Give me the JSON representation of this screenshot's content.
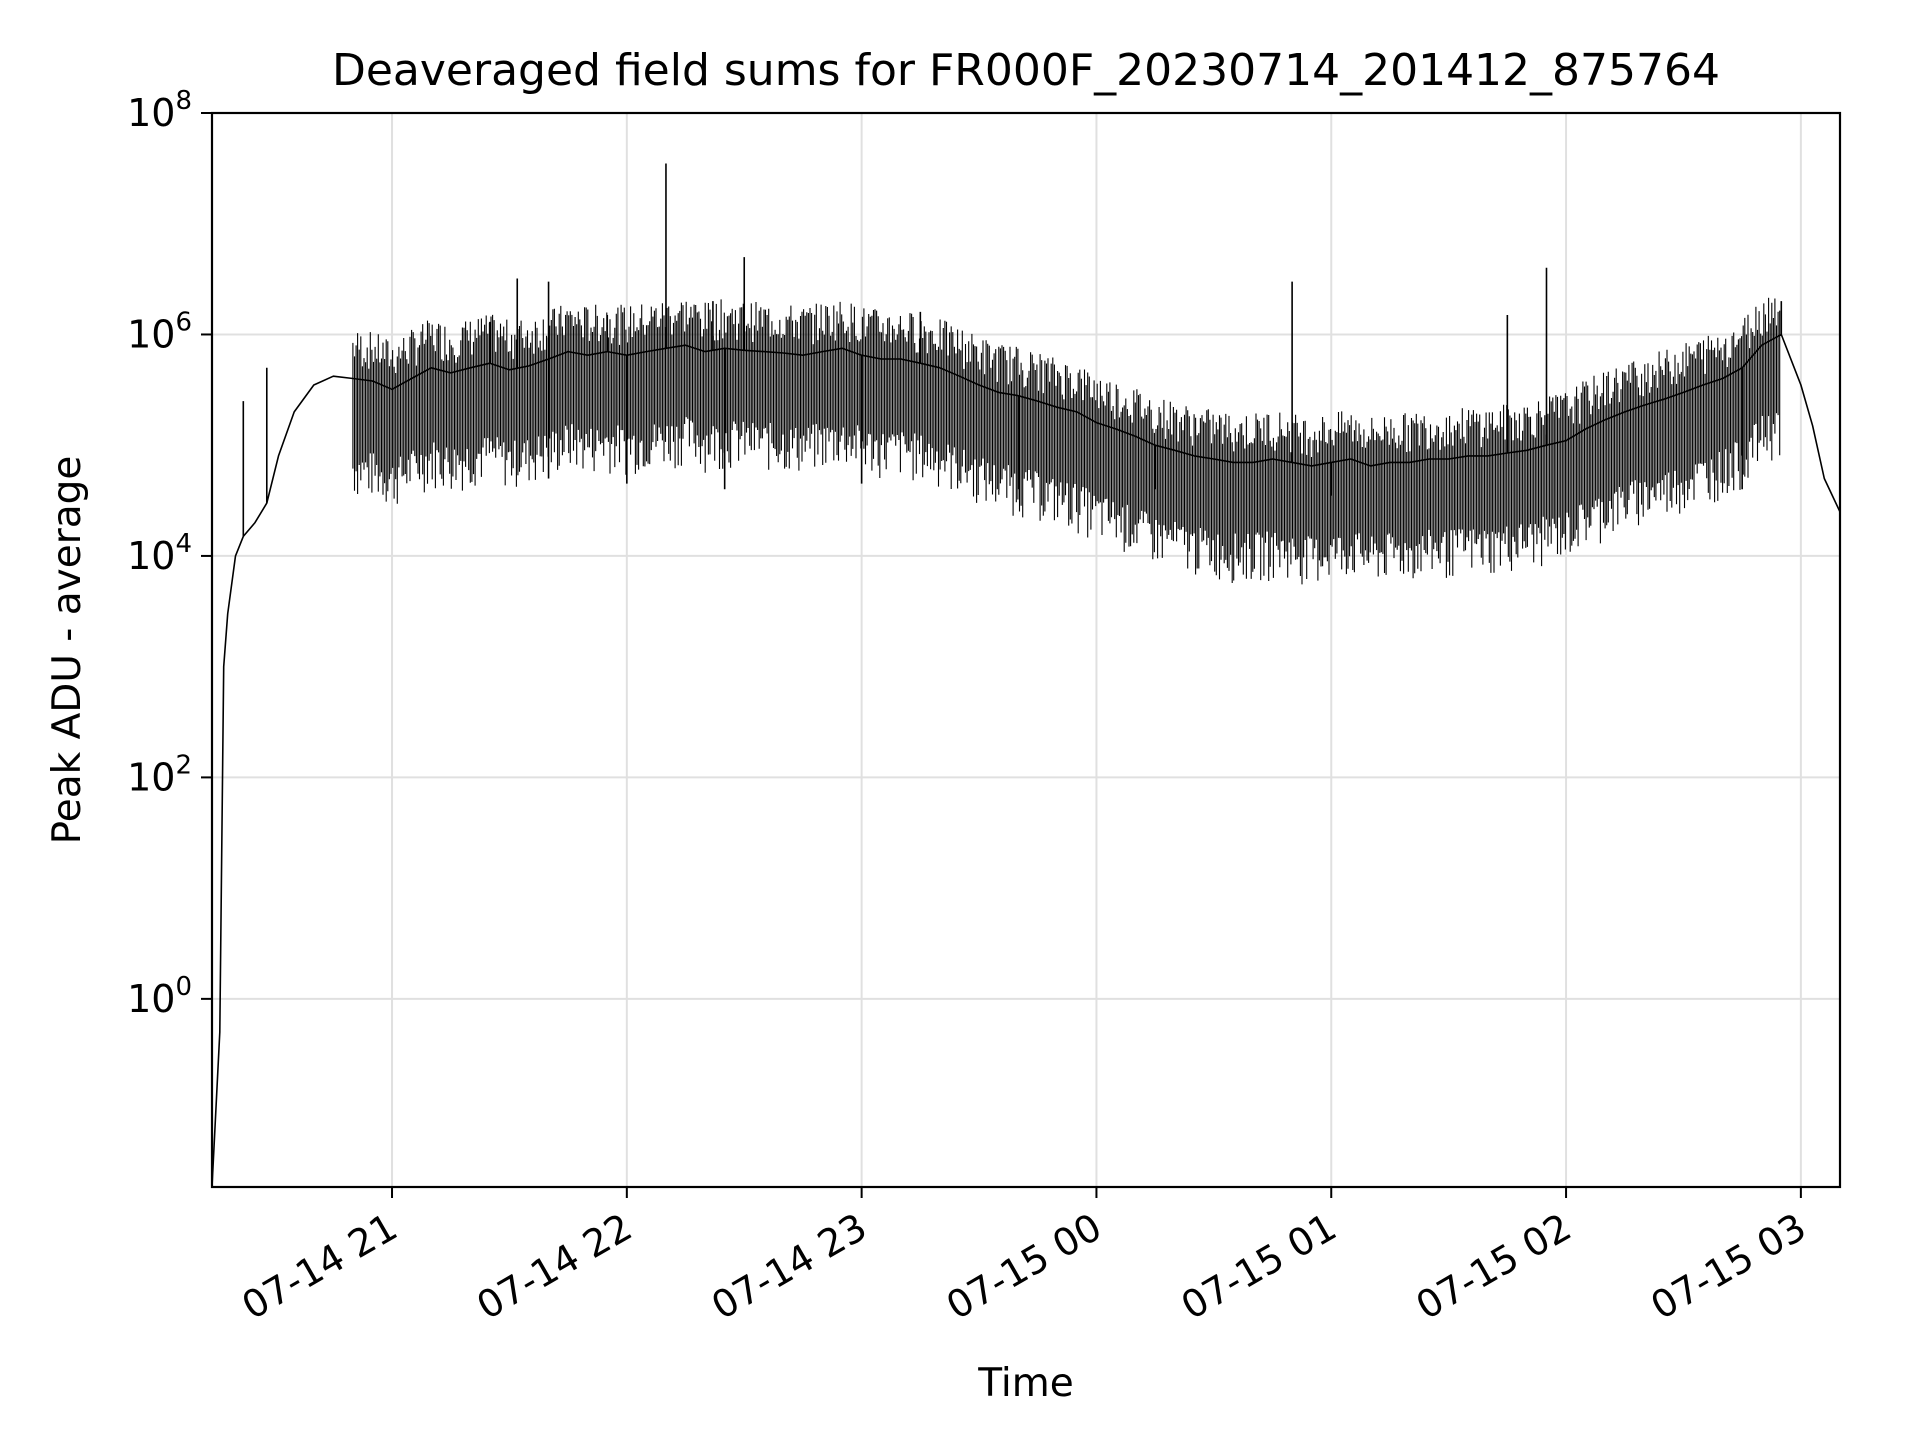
{
  "chart_data": {
    "type": "line",
    "title": "Deaveraged field sums for FR000F_20230714_201412_875764",
    "xlabel": "Time",
    "ylabel": "Peak ADU - average",
    "x_tick_labels": [
      "07-14 21",
      "07-14 22",
      "07-14 23",
      "07-15 00",
      "07-15 01",
      "07-15 02",
      "07-15 03"
    ],
    "y_scale": "log",
    "y_tick_labels": [
      {
        "base": "10",
        "exp": "0"
      },
      {
        "base": "10",
        "exp": "2"
      },
      {
        "base": "10",
        "exp": "4"
      },
      {
        "base": "10",
        "exp": "6"
      },
      {
        "base": "10",
        "exp": "8"
      }
    ],
    "xlim": [
      "2023-07-14 20:14",
      "2023-07-15 03:10"
    ],
    "ylim": [
      0.02,
      100000000
    ],
    "grid": true,
    "line_color": "#000000",
    "grid_color": "#e0e0e0",
    "series": [
      {
        "x": [
          "2023-07-14 20:14",
          "2023-07-14 20:16",
          "2023-07-14 20:17",
          "2023-07-14 20:18",
          "2023-07-14 20:20",
          "2023-07-14 20:22",
          "2023-07-14 20:25",
          "2023-07-14 20:28",
          "2023-07-14 20:31",
          "2023-07-14 20:35",
          "2023-07-14 20:40",
          "2023-07-14 20:45",
          "2023-07-14 20:50",
          "2023-07-14 20:55",
          "2023-07-14 21:00",
          "2023-07-14 21:05",
          "2023-07-14 21:10",
          "2023-07-14 21:15",
          "2023-07-14 21:20",
          "2023-07-14 21:25",
          "2023-07-14 21:30",
          "2023-07-14 21:35",
          "2023-07-14 21:40",
          "2023-07-14 21:45",
          "2023-07-14 21:50",
          "2023-07-14 21:55",
          "2023-07-14 22:00",
          "2023-07-14 22:05",
          "2023-07-14 22:10",
          "2023-07-14 22:15",
          "2023-07-14 22:20",
          "2023-07-14 22:25",
          "2023-07-14 22:30",
          "2023-07-14 22:35",
          "2023-07-14 22:40",
          "2023-07-14 22:45",
          "2023-07-14 22:50",
          "2023-07-14 22:55",
          "2023-07-14 23:00",
          "2023-07-14 23:05",
          "2023-07-14 23:10",
          "2023-07-14 23:15",
          "2023-07-14 23:20",
          "2023-07-14 23:25",
          "2023-07-14 23:30",
          "2023-07-14 23:35",
          "2023-07-14 23:40",
          "2023-07-14 23:45",
          "2023-07-14 23:50",
          "2023-07-14 23:55",
          "2023-07-15 00:00",
          "2023-07-15 00:05",
          "2023-07-15 00:10",
          "2023-07-15 00:15",
          "2023-07-15 00:20",
          "2023-07-15 00:25",
          "2023-07-15 00:30",
          "2023-07-15 00:35",
          "2023-07-15 00:40",
          "2023-07-15 00:45",
          "2023-07-15 00:50",
          "2023-07-15 00:55",
          "2023-07-15 01:00",
          "2023-07-15 01:05",
          "2023-07-15 01:10",
          "2023-07-15 01:15",
          "2023-07-15 01:20",
          "2023-07-15 01:25",
          "2023-07-15 01:30",
          "2023-07-15 01:35",
          "2023-07-15 01:40",
          "2023-07-15 01:45",
          "2023-07-15 01:50",
          "2023-07-15 01:55",
          "2023-07-15 02:00",
          "2023-07-15 02:05",
          "2023-07-15 02:10",
          "2023-07-15 02:15",
          "2023-07-15 02:20",
          "2023-07-15 02:25",
          "2023-07-15 02:30",
          "2023-07-15 02:35",
          "2023-07-15 02:40",
          "2023-07-15 02:45",
          "2023-07-15 02:50",
          "2023-07-15 02:55",
          "2023-07-15 03:00",
          "2023-07-15 03:03",
          "2023-07-15 03:06",
          "2023-07-15 03:10"
        ],
        "y": [
          0.02,
          0.5,
          1000,
          3000,
          10000,
          15000,
          20000,
          30000,
          80000,
          200000,
          350000,
          420000,
          400000,
          380000,
          320000,
          400000,
          500000,
          450000,
          500000,
          550000,
          480000,
          520000,
          600000,
          700000,
          650000,
          700000,
          650000,
          700000,
          750000,
          800000,
          700000,
          750000,
          720000,
          700000,
          680000,
          650000,
          700000,
          750000,
          650000,
          600000,
          600000,
          550000,
          500000,
          420000,
          350000,
          300000,
          280000,
          250000,
          220000,
          200000,
          160000,
          140000,
          120000,
          100000,
          90000,
          80000,
          75000,
          70000,
          70000,
          75000,
          70000,
          65000,
          70000,
          75000,
          65000,
          70000,
          70000,
          75000,
          75000,
          80000,
          80000,
          85000,
          90000,
          100000,
          110000,
          140000,
          170000,
          200000,
          230000,
          260000,
          300000,
          350000,
          400000,
          500000,
          800000,
          1000000,
          350000,
          150000,
          50000,
          25000
        ]
      }
    ],
    "spikes": [
      {
        "x": "2023-07-14 20:22",
        "y": 250000
      },
      {
        "x": "2023-07-14 20:28",
        "y": 500000
      },
      {
        "x": "2023-07-14 21:25",
        "y": 1300000
      },
      {
        "x": "2023-07-14 21:32",
        "y": 3200000
      },
      {
        "x": "2023-07-14 21:40",
        "y": 3000000
      },
      {
        "x": "2023-07-14 21:55",
        "y": 1500000
      },
      {
        "x": "2023-07-14 22:10",
        "y": 35000000
      },
      {
        "x": "2023-07-14 22:22",
        "y": 2000000
      },
      {
        "x": "2023-07-14 22:30",
        "y": 5000000
      },
      {
        "x": "2023-07-14 23:15",
        "y": 1600000
      },
      {
        "x": "2023-07-15 00:50",
        "y": 3000000
      },
      {
        "x": "2023-07-15 01:45",
        "y": 1500000
      },
      {
        "x": "2023-07-15 01:55",
        "y": 4000000
      },
      {
        "x": "2023-07-15 02:55",
        "y": 2000000
      }
    ],
    "dips": [
      {
        "x": "2023-07-14 21:40",
        "y": 50000
      },
      {
        "x": "2023-07-14 22:00",
        "y": 45000
      },
      {
        "x": "2023-07-14 22:25",
        "y": 40000
      },
      {
        "x": "2023-07-14 23:00",
        "y": 45000
      },
      {
        "x": "2023-07-14 23:40",
        "y": 40000
      },
      {
        "x": "2023-07-15 00:15",
        "y": 40000
      },
      {
        "x": "2023-07-15 01:00",
        "y": 35000
      },
      {
        "x": "2023-07-15 02:45",
        "y": 40000
      }
    ]
  }
}
